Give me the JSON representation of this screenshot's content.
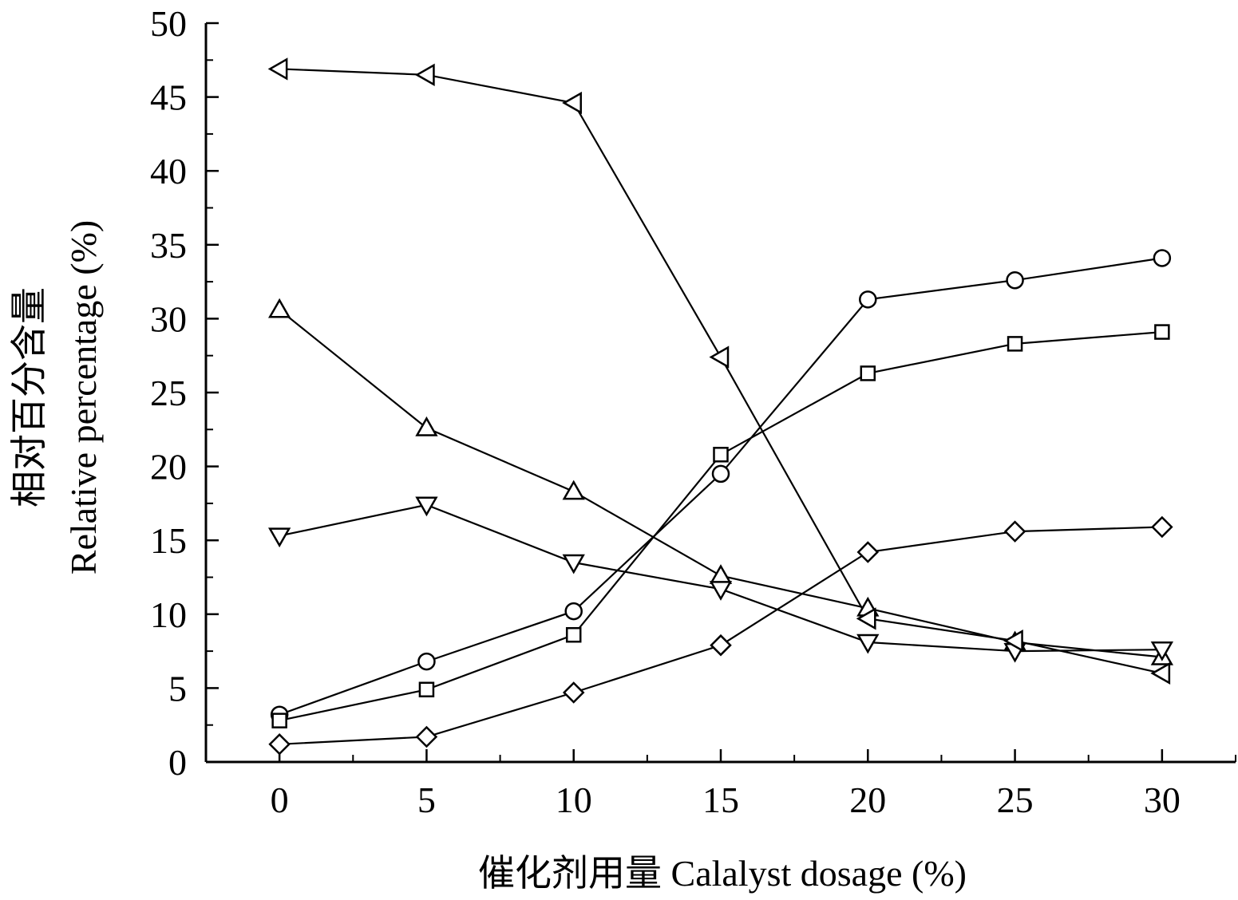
{
  "chart_data": {
    "type": "line",
    "xlabel": "催化剂用量  Calalyst dosage (%)",
    "ylabel_cn": "相对百分含量",
    "ylabel_en": "Relative percentage (%)",
    "xlim": [
      -2.5,
      32.5
    ],
    "ylim": [
      0,
      50
    ],
    "x_ticks": [
      0,
      5,
      10,
      15,
      20,
      25,
      30
    ],
    "y_ticks": [
      0,
      5,
      10,
      15,
      20,
      25,
      30,
      35,
      40,
      45,
      50
    ],
    "x": [
      0,
      5,
      10,
      15,
      20,
      25,
      30
    ],
    "grid": false,
    "legend": "none",
    "series": [
      {
        "marker": "circle",
        "values": [
          3.2,
          6.8,
          10.2,
          19.5,
          31.3,
          32.6,
          34.1
        ]
      },
      {
        "marker": "square",
        "values": [
          2.8,
          4.9,
          8.6,
          20.8,
          26.3,
          28.3,
          29.1
        ]
      },
      {
        "marker": "diamond",
        "values": [
          1.2,
          1.7,
          4.7,
          7.9,
          14.2,
          15.6,
          15.9
        ]
      },
      {
        "marker": "triangle-up",
        "values": [
          30.6,
          22.6,
          18.3,
          12.6,
          10.4,
          8.1,
          7.1
        ]
      },
      {
        "marker": "triangle-down",
        "values": [
          15.3,
          17.4,
          13.5,
          11.7,
          8.1,
          7.5,
          7.6
        ]
      },
      {
        "marker": "triangle-left",
        "values": [
          46.9,
          46.5,
          44.6,
          27.4,
          9.7,
          8.2,
          6.0
        ]
      }
    ]
  }
}
